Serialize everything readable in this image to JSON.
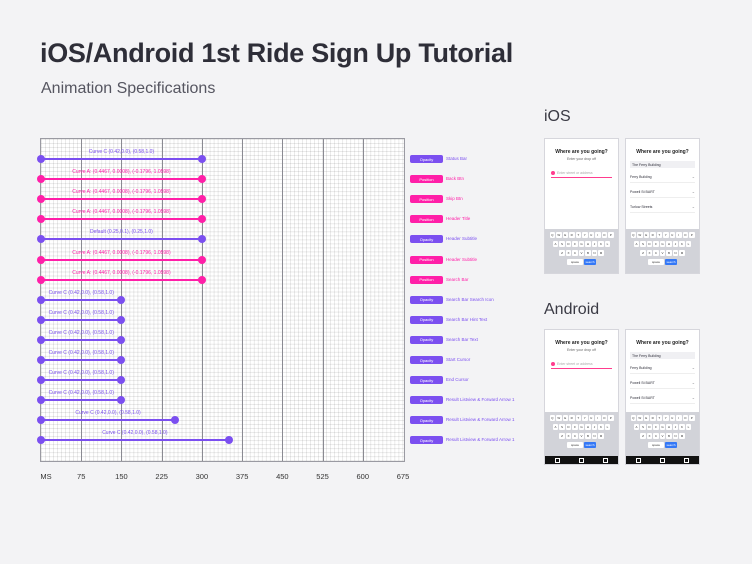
{
  "header": {
    "title": "iOS/Android 1st Ride Sign Up Tutorial",
    "subtitle": "Animation Specifications"
  },
  "platforms": {
    "ios": "iOS",
    "android": "Android"
  },
  "colors": {
    "purple": "#7b4ff0",
    "magenta": "#ff1fa8",
    "grid_line": "#8a8a92"
  },
  "chart_data": {
    "type": "timeline",
    "x_unit": "MS",
    "x_ticks": [
      "MS",
      "75",
      "150",
      "225",
      "300",
      "375",
      "450",
      "525",
      "600",
      "675"
    ],
    "rows": [
      {
        "curve": "Curve C (0.42,0.0), (0.58,1.0)",
        "start": 0,
        "end": 300,
        "type": "Opacity",
        "element": "Status Bar",
        "color": "purple"
      },
      {
        "curve": "Curve A: (0.4467, 0.0008), (-0.1796, 1.0598)",
        "start": 0,
        "end": 300,
        "type": "Position",
        "element": "Back Btn",
        "color": "magenta"
      },
      {
        "curve": "Curve A: (0.4467, 0.0008), (-0.1796, 1.0598)",
        "start": 0,
        "end": 300,
        "type": "Position",
        "element": "Skip Btn",
        "color": "magenta"
      },
      {
        "curve": "Curve A: (0.4467, 0.0008), (-0.1796, 1.0598)",
        "start": 0,
        "end": 300,
        "type": "Position",
        "element": "Header Title",
        "color": "magenta"
      },
      {
        "curve": "Default (0.25,0.1), (0.25,1.0)",
        "start": 0,
        "end": 300,
        "type": "Opacity",
        "element": "Header Subtitle",
        "color": "purple"
      },
      {
        "curve": "Curve A: (0.4467, 0.0008), (-0.1796, 1.0598)",
        "start": 0,
        "end": 300,
        "type": "Position",
        "element": "Header Subtitle",
        "color": "magenta"
      },
      {
        "curve": "Curve A: (0.4467, 0.0008), (-0.1796, 1.0598)",
        "start": 0,
        "end": 300,
        "type": "Position",
        "element": "Search Bar",
        "color": "magenta"
      },
      {
        "curve": "Curve C (0.42,0.0), (0.58,1.0)",
        "start": 0,
        "end": 150,
        "type": "Opacity",
        "element": "Search Bar Search Icon",
        "color": "purple"
      },
      {
        "curve": "Curve C (0.42,0.0), (0.58,1.0)",
        "start": 0,
        "end": 150,
        "type": "Opacity",
        "element": "Search Bar Hint Text",
        "color": "purple"
      },
      {
        "curve": "Curve C (0.42,0.0), (0.58,1.0)",
        "start": 0,
        "end": 150,
        "type": "Opacity",
        "element": "Search Bar Text",
        "color": "purple"
      },
      {
        "curve": "Curve C (0.42,0.0), (0.58,1.0)",
        "start": 0,
        "end": 150,
        "type": "Opacity",
        "element": "Start Cursor",
        "color": "purple"
      },
      {
        "curve": "Curve C (0.42,0.0), (0.58,1.0)",
        "start": 0,
        "end": 150,
        "type": "Opacity",
        "element": "End Cursor",
        "color": "purple"
      },
      {
        "curve": "Curve C (0.42,0.0), (0.58,1.0)",
        "start": 0,
        "end": 150,
        "type": "Opacity",
        "element": "Result Listview & Forward Arrow 1",
        "color": "purple"
      },
      {
        "curve": "Curve C (0.42,0.0), (0.58,1.0)",
        "start": 0,
        "end": 250,
        "type": "Opacity",
        "element": "Result Listview & Forward Arrow 1",
        "color": "purple"
      },
      {
        "curve": "Curve C (0.42,0.0), (0.58,1.0)",
        "start": 0,
        "end": 350,
        "type": "Opacity",
        "element": "Result Listview & Forward Arrow 1",
        "color": "purple"
      }
    ]
  },
  "phones": {
    "heading": "Where are you going?",
    "subheading": "Enter your drop off",
    "search_hint": "Enter street or address",
    "typed_value": "The Ferry Building",
    "results": [
      "Ferry Building",
      "Powell St BART",
      "Turlow Streets"
    ],
    "android_results": [
      "Ferry Building",
      "Powell St BART",
      "Powell St BART"
    ],
    "key_rows": [
      [
        "Q",
        "W",
        "E",
        "R",
        "T",
        "Y",
        "U",
        "I",
        "O",
        "P"
      ],
      [
        "A",
        "S",
        "D",
        "F",
        "G",
        "H",
        "J",
        "K",
        "L"
      ],
      [
        "Z",
        "X",
        "C",
        "V",
        "B",
        "N",
        "M"
      ]
    ],
    "space": "space",
    "go": "search"
  }
}
